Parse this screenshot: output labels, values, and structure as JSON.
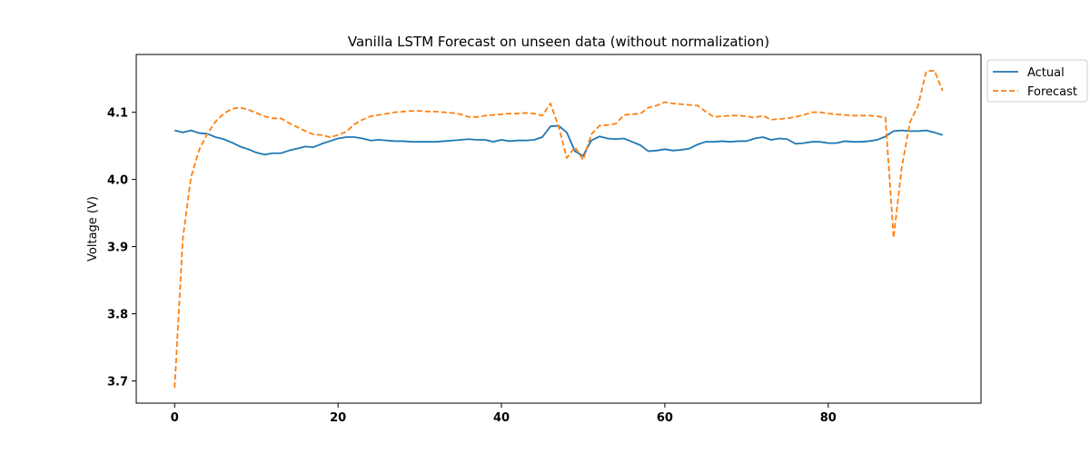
{
  "chart_data": {
    "type": "line",
    "title": "Vanilla LSTM Forecast on unseen data (without normalization)",
    "xlabel": "",
    "ylabel": "Voltage (V)",
    "xlim": [
      -4.7,
      98.7
    ],
    "ylim": [
      3.667,
      4.186
    ],
    "xticks": [
      0,
      20,
      40,
      60,
      80
    ],
    "yticks": [
      3.7,
      3.8,
      3.9,
      4.0,
      4.1
    ],
    "ytick_labels": [
      "3.7",
      "3.8",
      "3.9",
      "4.0",
      "4.1"
    ],
    "grid": false,
    "legend_position": "outside-top-right",
    "series": [
      {
        "name": "Actual",
        "color": "#1f77b4",
        "dash": "solid",
        "x": [
          0,
          1,
          2,
          3,
          4,
          5,
          6,
          7,
          8,
          9,
          10,
          11,
          12,
          13,
          14,
          15,
          16,
          17,
          18,
          19,
          20,
          21,
          22,
          23,
          24,
          25,
          26,
          27,
          28,
          29,
          30,
          31,
          32,
          33,
          34,
          35,
          36,
          37,
          38,
          39,
          40,
          41,
          42,
          43,
          44,
          45,
          46,
          47,
          48,
          49,
          50,
          51,
          52,
          53,
          54,
          55,
          56,
          57,
          58,
          59,
          60,
          61,
          62,
          63,
          64,
          65,
          66,
          67,
          68,
          69,
          70,
          71,
          72,
          73,
          74,
          75,
          76,
          77,
          78,
          79,
          80,
          81,
          82,
          83,
          84,
          85,
          86,
          87,
          88,
          89,
          90,
          91,
          92,
          93,
          94
        ],
        "values": [
          4.073,
          4.07,
          4.073,
          4.069,
          4.068,
          4.063,
          4.06,
          4.055,
          4.049,
          4.045,
          4.04,
          4.037,
          4.039,
          4.039,
          4.043,
          4.046,
          4.049,
          4.048,
          4.053,
          4.057,
          4.061,
          4.063,
          4.063,
          4.061,
          4.058,
          4.059,
          4.058,
          4.057,
          4.057,
          4.056,
          4.056,
          4.056,
          4.056,
          4.057,
          4.058,
          4.059,
          4.06,
          4.059,
          4.059,
          4.056,
          4.059,
          4.057,
          4.058,
          4.058,
          4.059,
          4.063,
          4.079,
          4.08,
          4.07,
          4.042,
          4.035,
          4.058,
          4.064,
          4.061,
          4.06,
          4.061,
          4.056,
          4.051,
          4.042,
          4.043,
          4.045,
          4.043,
          4.044,
          4.046,
          4.052,
          4.056,
          4.056,
          4.057,
          4.056,
          4.057,
          4.057,
          4.061,
          4.063,
          4.059,
          4.061,
          4.06,
          4.053,
          4.054,
          4.056,
          4.056,
          4.054,
          4.054,
          4.057,
          4.056,
          4.056,
          4.057,
          4.059,
          4.064,
          4.072,
          4.073,
          4.072,
          4.072,
          4.073,
          4.07,
          4.066
        ]
      },
      {
        "name": "Forecast",
        "color": "#ff7f0e",
        "dash": "6,3",
        "x": [
          0,
          1,
          2,
          3,
          4,
          5,
          6,
          7,
          8,
          9,
          10,
          11,
          12,
          13,
          14,
          15,
          16,
          17,
          18,
          19,
          20,
          21,
          22,
          23,
          24,
          25,
          26,
          27,
          28,
          29,
          30,
          31,
          32,
          33,
          34,
          35,
          36,
          37,
          38,
          39,
          40,
          41,
          42,
          43,
          44,
          45,
          46,
          47,
          48,
          49,
          50,
          51,
          52,
          53,
          54,
          55,
          56,
          57,
          58,
          59,
          60,
          61,
          62,
          63,
          64,
          65,
          66,
          67,
          68,
          69,
          70,
          71,
          72,
          73,
          74,
          75,
          76,
          77,
          78,
          79,
          80,
          81,
          82,
          83,
          84,
          85,
          86,
          87,
          88,
          89,
          90,
          91,
          92,
          93,
          94
        ],
        "values": [
          3.69,
          3.912,
          4.003,
          4.044,
          4.068,
          4.086,
          4.098,
          4.105,
          4.107,
          4.104,
          4.099,
          4.094,
          4.091,
          4.091,
          4.084,
          4.078,
          4.072,
          4.067,
          4.066,
          4.063,
          4.066,
          4.071,
          4.082,
          4.089,
          4.094,
          4.096,
          4.098,
          4.1,
          4.101,
          4.102,
          4.102,
          4.101,
          4.101,
          4.1,
          4.099,
          4.097,
          4.093,
          4.093,
          4.095,
          4.096,
          4.097,
          4.098,
          4.098,
          4.099,
          4.098,
          4.095,
          4.113,
          4.079,
          4.032,
          4.048,
          4.029,
          4.067,
          4.08,
          4.081,
          4.083,
          4.096,
          4.097,
          4.098,
          4.107,
          4.11,
          4.115,
          4.113,
          4.112,
          4.111,
          4.11,
          4.101,
          4.093,
          4.094,
          4.095,
          4.095,
          4.094,
          4.092,
          4.095,
          4.089,
          4.09,
          4.091,
          4.093,
          4.096,
          4.1,
          4.1,
          4.098,
          4.097,
          4.096,
          4.095,
          4.095,
          4.095,
          4.094,
          4.092,
          3.913,
          4.018,
          4.085,
          4.11,
          4.161,
          4.162,
          4.132
        ]
      }
    ]
  }
}
